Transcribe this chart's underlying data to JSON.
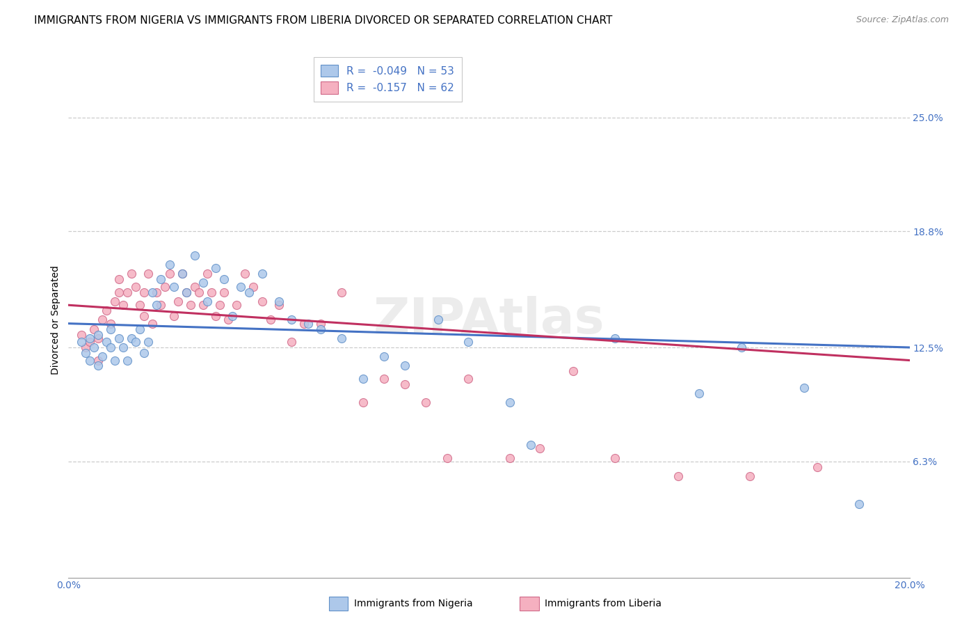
{
  "title": "IMMIGRANTS FROM NIGERIA VS IMMIGRANTS FROM LIBERIA DIVORCED OR SEPARATED CORRELATION CHART",
  "source": "Source: ZipAtlas.com",
  "ylabel": "Divorced or Separated",
  "xlim": [
    0.0,
    0.2
  ],
  "ylim": [
    0.0,
    0.28
  ],
  "xtick_positions": [
    0.0,
    0.05,
    0.1,
    0.15,
    0.2
  ],
  "xtick_labels": [
    "0.0%",
    "",
    "",
    "",
    "20.0%"
  ],
  "yticks_right": [
    0.063,
    0.125,
    0.188,
    0.25
  ],
  "ytick_labels_right": [
    "6.3%",
    "12.5%",
    "18.8%",
    "25.0%"
  ],
  "nigeria_color": "#adc8ea",
  "nigeria_edge": "#6090c8",
  "liberia_color": "#f5b0c0",
  "liberia_edge": "#d06888",
  "trend_nigeria_color": "#4472C4",
  "trend_liberia_color": "#C03060",
  "legend_label_nigeria": "Immigrants from Nigeria",
  "legend_label_liberia": "Immigrants from Liberia",
  "watermark": "ZIPAtlas",
  "marker_size": 75,
  "background_color": "#ffffff",
  "grid_color": "#cccccc",
  "title_fontsize": 11,
  "axis_label_fontsize": 10,
  "tick_fontsize": 10,
  "legend_fontsize": 11,
  "nigeria_x": [
    0.003,
    0.004,
    0.005,
    0.005,
    0.006,
    0.007,
    0.007,
    0.008,
    0.009,
    0.01,
    0.01,
    0.011,
    0.012,
    0.013,
    0.014,
    0.015,
    0.016,
    0.017,
    0.018,
    0.019,
    0.02,
    0.021,
    0.022,
    0.024,
    0.025,
    0.027,
    0.028,
    0.03,
    0.032,
    0.033,
    0.035,
    0.037,
    0.039,
    0.041,
    0.043,
    0.046,
    0.05,
    0.053,
    0.057,
    0.06,
    0.065,
    0.07,
    0.075,
    0.08,
    0.088,
    0.095,
    0.105,
    0.11,
    0.13,
    0.15,
    0.16,
    0.175,
    0.188
  ],
  "nigeria_y": [
    0.128,
    0.122,
    0.13,
    0.118,
    0.125,
    0.115,
    0.132,
    0.12,
    0.128,
    0.125,
    0.135,
    0.118,
    0.13,
    0.125,
    0.118,
    0.13,
    0.128,
    0.135,
    0.122,
    0.128,
    0.155,
    0.148,
    0.162,
    0.17,
    0.158,
    0.165,
    0.155,
    0.175,
    0.16,
    0.15,
    0.168,
    0.162,
    0.142,
    0.158,
    0.155,
    0.165,
    0.15,
    0.14,
    0.138,
    0.135,
    0.13,
    0.108,
    0.12,
    0.115,
    0.14,
    0.128,
    0.095,
    0.072,
    0.13,
    0.1,
    0.125,
    0.103,
    0.04
  ],
  "liberia_x": [
    0.003,
    0.004,
    0.005,
    0.006,
    0.007,
    0.007,
    0.008,
    0.009,
    0.01,
    0.011,
    0.012,
    0.012,
    0.013,
    0.014,
    0.015,
    0.016,
    0.017,
    0.018,
    0.018,
    0.019,
    0.02,
    0.021,
    0.022,
    0.023,
    0.024,
    0.025,
    0.026,
    0.027,
    0.028,
    0.029,
    0.03,
    0.031,
    0.032,
    0.033,
    0.034,
    0.035,
    0.036,
    0.037,
    0.038,
    0.04,
    0.042,
    0.044,
    0.046,
    0.048,
    0.05,
    0.053,
    0.056,
    0.06,
    0.065,
    0.07,
    0.075,
    0.08,
    0.085,
    0.09,
    0.095,
    0.105,
    0.112,
    0.12,
    0.13,
    0.145,
    0.162,
    0.178
  ],
  "liberia_y": [
    0.132,
    0.125,
    0.128,
    0.135,
    0.118,
    0.13,
    0.14,
    0.145,
    0.138,
    0.15,
    0.155,
    0.162,
    0.148,
    0.155,
    0.165,
    0.158,
    0.148,
    0.155,
    0.142,
    0.165,
    0.138,
    0.155,
    0.148,
    0.158,
    0.165,
    0.142,
    0.15,
    0.165,
    0.155,
    0.148,
    0.158,
    0.155,
    0.148,
    0.165,
    0.155,
    0.142,
    0.148,
    0.155,
    0.14,
    0.148,
    0.165,
    0.158,
    0.15,
    0.14,
    0.148,
    0.128,
    0.138,
    0.138,
    0.155,
    0.095,
    0.108,
    0.105,
    0.095,
    0.065,
    0.108,
    0.065,
    0.07,
    0.112,
    0.065,
    0.055,
    0.055,
    0.06
  ],
  "trend_nigeria_x0": 0.0,
  "trend_nigeria_x1": 0.2,
  "trend_nigeria_y0": 0.138,
  "trend_nigeria_y1": 0.125,
  "trend_liberia_x0": 0.0,
  "trend_liberia_x1": 0.2,
  "trend_liberia_y0": 0.148,
  "trend_liberia_y1": 0.118
}
